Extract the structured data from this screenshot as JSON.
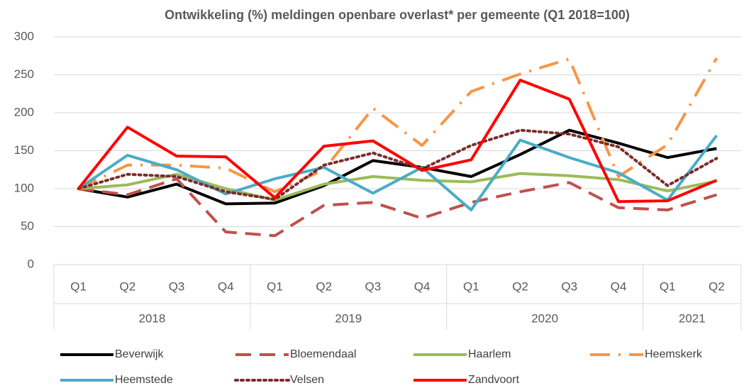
{
  "chart_data": {
    "type": "line",
    "title": "Ontwikkeling (%) meldingen openbare overlast* per gemeente (Q1 2018=100)",
    "category_groups": [
      {
        "label": "2018",
        "categories": [
          "Q1",
          "Q2",
          "Q3",
          "Q4"
        ]
      },
      {
        "label": "2019",
        "categories": [
          "Q1",
          "Q2",
          "Q3",
          "Q4"
        ]
      },
      {
        "label": "2020",
        "categories": [
          "Q1",
          "Q2",
          "Q3",
          "Q4"
        ]
      },
      {
        "label": "2021",
        "categories": [
          "Q1",
          "Q2"
        ]
      }
    ],
    "ylim": [
      0,
      300
    ],
    "yticks": [
      0,
      50,
      100,
      150,
      200,
      250,
      300
    ],
    "grid": true,
    "legend": "bottom",
    "series": [
      {
        "name": "Beverwijk",
        "color": "#000000",
        "dash": "solid",
        "values": [
          100,
          89,
          106,
          80,
          81,
          104,
          137,
          128,
          116,
          145,
          177,
          160,
          141,
          153
        ]
      },
      {
        "name": "Bloemendaal",
        "color": "#c0504d",
        "dash": "dashed",
        "values": [
          100,
          92,
          113,
          43,
          38,
          78,
          82,
          61,
          82,
          96,
          108,
          75,
          72,
          92
        ]
      },
      {
        "name": "Haarlem",
        "color": "#9bbb59",
        "dash": "solid",
        "values": [
          100,
          105,
          119,
          100,
          85,
          106,
          116,
          111,
          109,
          120,
          117,
          112,
          97,
          110
        ]
      },
      {
        "name": "Heemskerk",
        "color": "#f79646",
        "dash": "dashdot",
        "values": [
          100,
          131,
          131,
          127,
          96,
          125,
          206,
          157,
          228,
          251,
          271,
          116,
          158,
          272
        ]
      },
      {
        "name": "Heemstede",
        "color": "#4bacc6",
        "dash": "solid",
        "values": [
          100,
          144,
          125,
          93,
          113,
          128,
          94,
          128,
          72,
          164,
          141,
          121,
          85,
          170
        ]
      },
      {
        "name": "Velsen",
        "color": "#7b2c2c",
        "dash": "dotted",
        "values": [
          100,
          119,
          116,
          96,
          86,
          131,
          147,
          126,
          157,
          177,
          172,
          155,
          104,
          140
        ]
      },
      {
        "name": "Zandvoort",
        "color": "#ff0000",
        "dash": "solid",
        "values": [
          100,
          181,
          143,
          142,
          88,
          156,
          163,
          124,
          138,
          243,
          218,
          83,
          84,
          111
        ]
      }
    ]
  }
}
